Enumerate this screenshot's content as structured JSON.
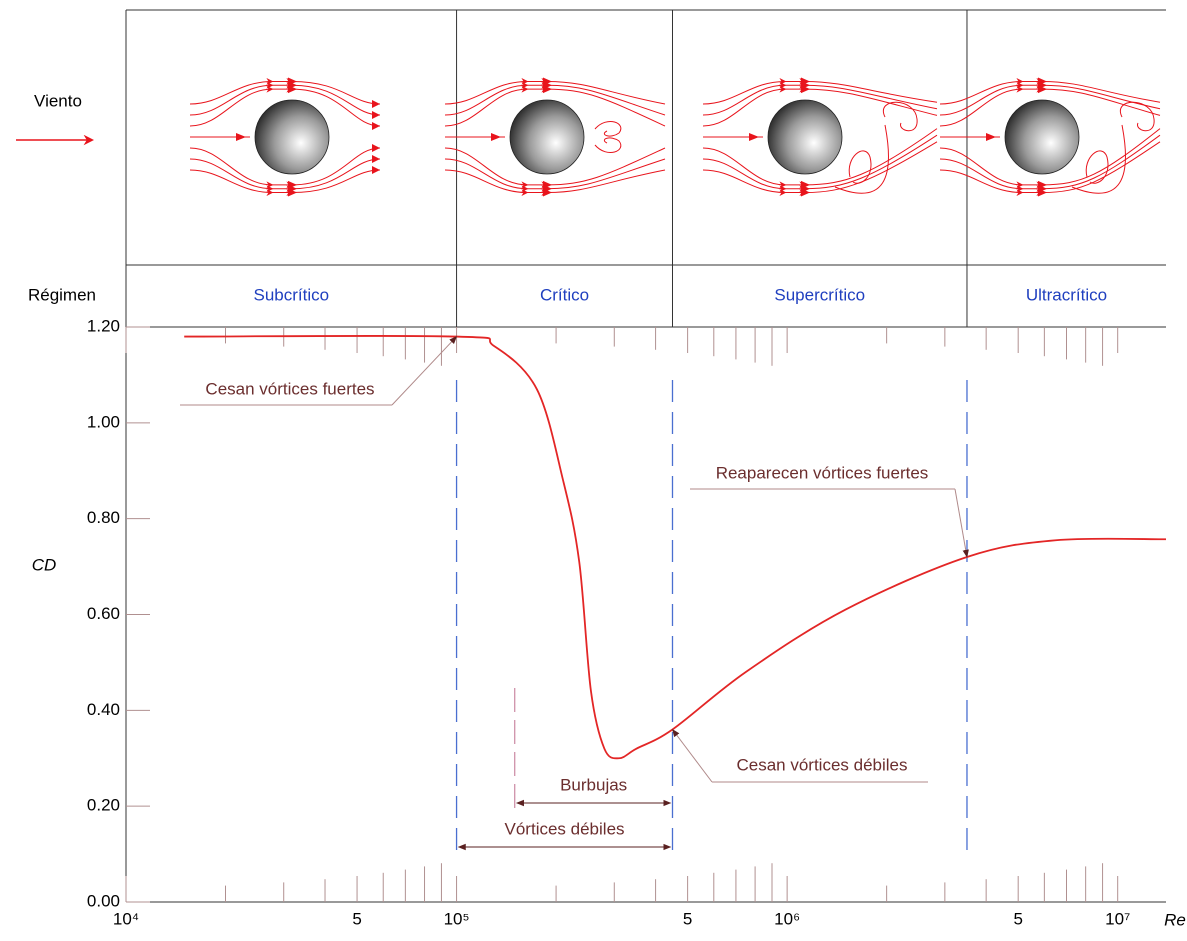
{
  "chart_data": {
    "type": "line",
    "wind_label": "Viento",
    "regime_header": "Régimen",
    "ylabel": "CD",
    "xlabel": "Re",
    "log_x": true,
    "color": "#e32626",
    "x": [
      15000,
      100000,
      130000,
      175000,
      210000,
      235000,
      255000,
      280000,
      310000,
      350000,
      450000,
      750000,
      1500000,
      3500000,
      6500000,
      14000000
    ],
    "values": [
      1.18,
      1.18,
      1.16,
      1.07,
      0.88,
      0.71,
      0.44,
      0.32,
      0.3,
      0.32,
      0.36,
      0.48,
      0.61,
      0.72,
      0.755,
      0.757
    ],
    "xlim": [
      10000,
      14000000
    ],
    "ylim": [
      0,
      1.2
    ],
    "xticks": [
      {
        "value": 10000,
        "label": "10⁴"
      },
      {
        "value": 50000,
        "label": "5"
      },
      {
        "value": 100000,
        "label": "10⁵"
      },
      {
        "value": 500000,
        "label": "5"
      },
      {
        "value": 1000000,
        "label": "10⁶"
      },
      {
        "value": 5000000,
        "label": "5"
      },
      {
        "value": 10000000,
        "label": "10⁷"
      }
    ],
    "xminor_ticks": [
      20000,
      30000,
      40000,
      60000,
      70000,
      80000,
      90000,
      200000,
      300000,
      400000,
      600000,
      700000,
      800000,
      900000,
      2000000,
      3000000,
      4000000,
      6000000,
      7000000,
      8000000,
      9000000
    ],
    "yticks": [
      {
        "value": 0,
        "label": "0.00"
      },
      {
        "value": 0.2,
        "label": "0.20"
      },
      {
        "value": 0.4,
        "label": "0.40"
      },
      {
        "value": 0.6,
        "label": "0.60"
      },
      {
        "value": 0.8,
        "label": "0.80"
      },
      {
        "value": 1.0,
        "label": "1.00"
      },
      {
        "value": 1.2,
        "label": "1.20"
      }
    ],
    "regimes": [
      {
        "name": "Subcrítico",
        "from": 10000,
        "to": 100000
      },
      {
        "name": "Crítico",
        "from": 100000,
        "to": 450000
      },
      {
        "name": "Supercrítico",
        "from": 450000,
        "to": 3500000
      },
      {
        "name": "Ultracrítico",
        "from": 3500000,
        "to": 14000000
      }
    ],
    "ranges": [
      {
        "label": "Burbujas",
        "from": 150000,
        "to": 450000
      },
      {
        "label": "Vórtices débiles",
        "from": 100000,
        "to": 450000
      }
    ],
    "annotations": [
      {
        "text": "Cesan vórtices fuertes",
        "x": 100000,
        "y": 1.18
      },
      {
        "text": "Reaparecen vórtices fuertes",
        "x": 3500000,
        "y": 0.72
      },
      {
        "text": "Cesan vórtices débiles",
        "x": 450000,
        "y": 0.36
      }
    ]
  }
}
